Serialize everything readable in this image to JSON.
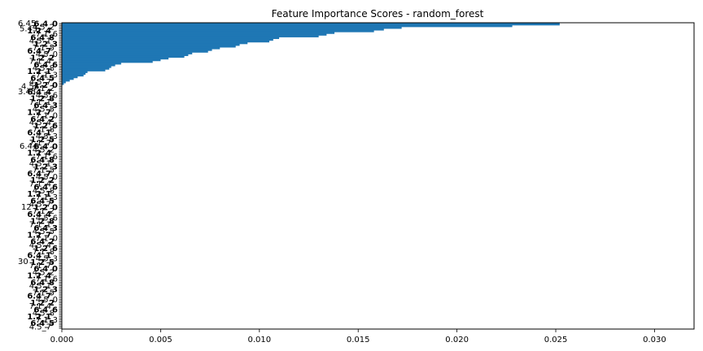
{
  "chart_data": {
    "type": "bar",
    "orientation": "horizontal",
    "title": "Feature Importance Scores - random_forest",
    "xlabel": "",
    "ylabel": "",
    "xlim": [
      0,
      0.032
    ],
    "x_ticks": [
      "0.000",
      "0.005",
      "0.010",
      "0.015",
      "0.020",
      "0.025",
      "0.030"
    ],
    "x_tick_values": [
      0,
      0.005,
      0.01,
      0.015,
      0.02,
      0.025,
      0.03
    ],
    "bar_color": "#1f77b4",
    "grid": false,
    "legend": "none",
    "n_features": 180,
    "visible_feature_labels": [
      "6.45",
      "5.43",
      "4.58",
      "3.45",
      "6.44",
      "12",
      "30"
    ],
    "values_top_down": [
      0.0252,
      0.0228,
      0.0172,
      0.0163,
      0.0158,
      0.0138,
      0.0134,
      0.013,
      0.011,
      0.0107,
      0.0105,
      0.0094,
      0.009,
      0.0088,
      0.008,
      0.0076,
      0.0074,
      0.0066,
      0.0064,
      0.0062,
      0.0054,
      0.005,
      0.0046,
      0.003,
      0.0027,
      0.0025,
      0.0024,
      0.0022,
      0.0013,
      0.0012,
      0.0011,
      0.0008,
      0.0006,
      0.0004,
      0.0002,
      0.0001
    ]
  }
}
